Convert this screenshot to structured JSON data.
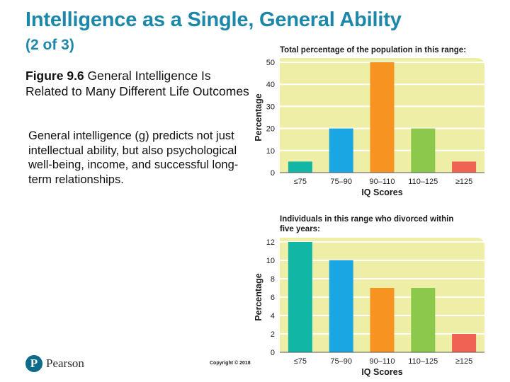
{
  "slide": {
    "title": "Intelligence as a Single, General Ability",
    "subtitle": "(2 of 3)",
    "figure_label": "Figure 9.6",
    "figure_caption": " General Intelligence Is Related to Many Different Life Outcomes",
    "body": "General intelligence (g) predicts not just intellectual ability, but also psychological well-being, income, and successful long-term relationships.",
    "logo_letter": "P",
    "logo_text": "Pearson",
    "copyright": "Copyright © 2018"
  },
  "colors": {
    "plot_bg": "#eeeea6",
    "grid": "#ffffff",
    "bars": [
      "#12b6a4",
      "#19a6e3",
      "#f79421",
      "#8cc84b",
      "#f06252"
    ]
  },
  "chart_data": [
    {
      "type": "bar",
      "title": "Total percentage of the population in this range:",
      "categories": [
        "≤75",
        "75–90",
        "90–110",
        "110–125",
        "≥125"
      ],
      "values": [
        5,
        20,
        50,
        20,
        5
      ],
      "xlabel": "IQ Scores",
      "ylabel": "Percentage",
      "ylim": [
        0,
        50
      ],
      "yticks": [
        0,
        10,
        20,
        30,
        40,
        50
      ],
      "grid": true
    },
    {
      "type": "bar",
      "title": "Individuals in this range who divorced within five years:",
      "categories": [
        "≤75",
        "75–90",
        "90–110",
        "110–125",
        "≥125"
      ],
      "values": [
        12,
        10,
        7,
        7,
        2
      ],
      "xlabel": "IQ Scores",
      "ylabel": "Percentage",
      "ylim": [
        0,
        12
      ],
      "yticks": [
        0,
        2,
        4,
        6,
        8,
        10,
        12
      ],
      "grid": true
    }
  ]
}
